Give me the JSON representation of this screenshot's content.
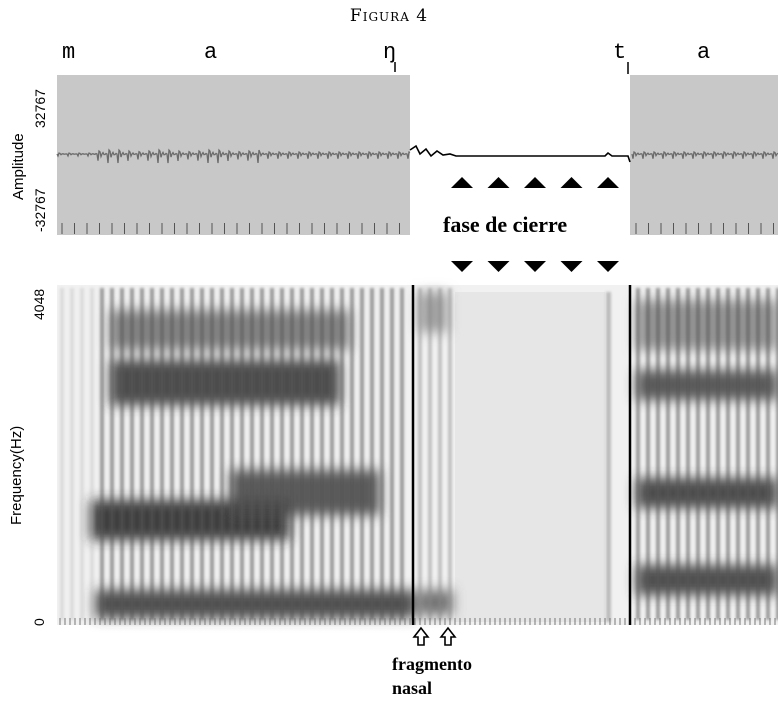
{
  "figure": {
    "title": "Figura 4"
  },
  "segments": [
    "m",
    "a",
    "ŋ",
    "t",
    "a"
  ],
  "waveform": {
    "ylabel": "Amplitude",
    "ticks": {
      "top": "32767",
      "bottom": "-32767"
    }
  },
  "closure": {
    "label": "fase de cierre",
    "arrows_up": 5,
    "arrows_down": 5
  },
  "spectrogram": {
    "ylabel": "Frequency(Hz)",
    "ticks": {
      "top": "4048",
      "bottom": "0"
    }
  },
  "annotation": {
    "line1": "fragmento",
    "line2": "nasal"
  },
  "colors": {
    "panel": "#c8c8c8",
    "wave": "#6b6b6b",
    "dark": "#000000"
  }
}
